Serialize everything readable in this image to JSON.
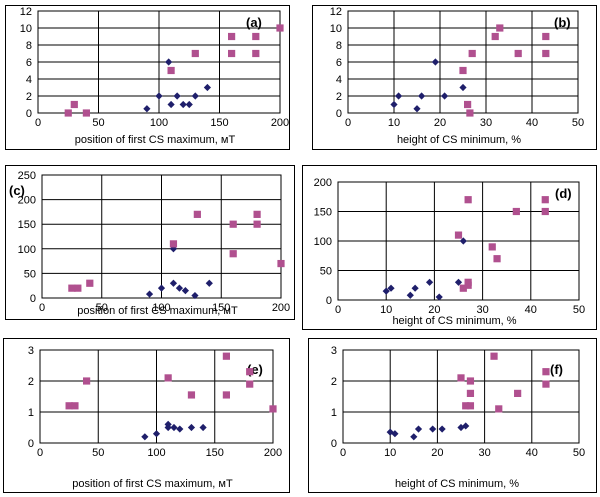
{
  "colors": {
    "diamond": "#1f1f6b",
    "square": "#b0508f",
    "grid": "#000000",
    "frame": "#000000"
  },
  "chart_data": [
    {
      "type": "scatter",
      "panel_label": "(a)",
      "xlabel": "position of first CS maximum, мT",
      "xlim": [
        0,
        200
      ],
      "ylim": [
        0,
        12
      ],
      "xticks": [
        0,
        50,
        100,
        150,
        200
      ],
      "yticks": [
        0,
        2,
        4,
        6,
        8,
        10,
        12
      ],
      "series": [
        {
          "marker": "diamond",
          "points": [
            [
              90,
              0.5
            ],
            [
              100,
              2
            ],
            [
              108,
              6
            ],
            [
              110,
              1
            ],
            [
              115,
              2
            ],
            [
              120,
              1
            ],
            [
              125,
              1
            ],
            [
              130,
              2
            ],
            [
              140,
              3
            ]
          ]
        },
        {
          "marker": "square",
          "points": [
            [
              25,
              0
            ],
            [
              30,
              1
            ],
            [
              40,
              0
            ],
            [
              110,
              5
            ],
            [
              130,
              7
            ],
            [
              160,
              9
            ],
            [
              160,
              7
            ],
            [
              180,
              9
            ],
            [
              180,
              7
            ],
            [
              200,
              10
            ]
          ]
        }
      ]
    },
    {
      "type": "scatter",
      "panel_label": "(b)",
      "xlabel": "height of CS minimum, %",
      "xlim": [
        0,
        50
      ],
      "ylim": [
        0,
        12
      ],
      "xticks": [
        0,
        10,
        20,
        30,
        40,
        50
      ],
      "yticks": [
        0,
        2,
        4,
        6,
        8,
        10,
        12
      ],
      "series": [
        {
          "marker": "diamond",
          "points": [
            [
              10,
              1
            ],
            [
              11,
              2
            ],
            [
              15,
              0.5
            ],
            [
              16,
              2
            ],
            [
              19,
              6
            ],
            [
              21,
              2
            ],
            [
              25,
              3
            ]
          ]
        },
        {
          "marker": "square",
          "points": [
            [
              25,
              5
            ],
            [
              26,
              1
            ],
            [
              26.5,
              0
            ],
            [
              27,
              7
            ],
            [
              32,
              9
            ],
            [
              33,
              10
            ],
            [
              37,
              7
            ],
            [
              43,
              9
            ],
            [
              43,
              7
            ]
          ]
        }
      ]
    },
    {
      "type": "scatter",
      "panel_label": "(c)",
      "xlabel": "position of first CS maximum, мT",
      "xlim": [
        0,
        200
      ],
      "ylim": [
        0,
        250
      ],
      "xticks": [
        0,
        50,
        100,
        150,
        200
      ],
      "yticks": [
        0,
        50,
        100,
        150,
        200,
        250
      ],
      "series": [
        {
          "marker": "diamond",
          "points": [
            [
              90,
              8
            ],
            [
              100,
              20
            ],
            [
              110,
              100
            ],
            [
              110,
              30
            ],
            [
              115,
              20
            ],
            [
              120,
              15
            ],
            [
              128,
              5
            ],
            [
              140,
              30
            ]
          ]
        },
        {
          "marker": "square",
          "points": [
            [
              25,
              20
            ],
            [
              30,
              20
            ],
            [
              40,
              30
            ],
            [
              110,
              110
            ],
            [
              130,
              170
            ],
            [
              160,
              150
            ],
            [
              160,
              90
            ],
            [
              180,
              170
            ],
            [
              180,
              150
            ],
            [
              200,
              70
            ]
          ]
        }
      ]
    },
    {
      "type": "scatter",
      "panel_label": "(d)",
      "xlabel": "height of CS minimum, %",
      "xlim": [
        0,
        50
      ],
      "ylim": [
        0,
        200
      ],
      "xticks": [
        0,
        10,
        20,
        30,
        40,
        50
      ],
      "yticks": [
        0,
        50,
        100,
        150,
        200
      ],
      "series": [
        {
          "marker": "diamond",
          "points": [
            [
              10,
              15
            ],
            [
              11,
              20
            ],
            [
              15,
              8
            ],
            [
              16,
              20
            ],
            [
              19,
              30
            ],
            [
              21,
              5
            ],
            [
              25,
              30
            ],
            [
              26,
              100
            ]
          ]
        },
        {
          "marker": "square",
          "points": [
            [
              25,
              110
            ],
            [
              26,
              20
            ],
            [
              27,
              170
            ],
            [
              27,
              30
            ],
            [
              27,
              25
            ],
            [
              32,
              90
            ],
            [
              33,
              70
            ],
            [
              37,
              150
            ],
            [
              43,
              170
            ],
            [
              43,
              150
            ]
          ]
        }
      ]
    },
    {
      "type": "scatter",
      "panel_label": "(e)",
      "xlabel": "position of first CS maximum, мT",
      "xlim": [
        0,
        200
      ],
      "ylim": [
        0,
        3
      ],
      "xticks": [
        0,
        50,
        100,
        150,
        200
      ],
      "yticks": [
        0,
        1,
        2,
        3
      ],
      "series": [
        {
          "marker": "diamond",
          "points": [
            [
              90,
              0.2
            ],
            [
              100,
              0.3
            ],
            [
              110,
              0.6
            ],
            [
              110,
              0.5
            ],
            [
              115,
              0.5
            ],
            [
              120,
              0.45
            ],
            [
              130,
              0.5
            ],
            [
              140,
              0.5
            ]
          ]
        },
        {
          "marker": "square",
          "points": [
            [
              25,
              1.2
            ],
            [
              30,
              1.2
            ],
            [
              40,
              2
            ],
            [
              110,
              2.1
            ],
            [
              130,
              1.55
            ],
            [
              160,
              2.8
            ],
            [
              160,
              1.55
            ],
            [
              180,
              2.3
            ],
            [
              180,
              1.9
            ],
            [
              200,
              1.1
            ]
          ]
        }
      ]
    },
    {
      "type": "scatter",
      "panel_label": "(f)",
      "xlabel": "height of CS minimum, %",
      "xlim": [
        0,
        50
      ],
      "ylim": [
        0,
        3
      ],
      "xticks": [
        0,
        10,
        20,
        30,
        40,
        50
      ],
      "yticks": [
        0,
        1,
        2,
        3
      ],
      "series": [
        {
          "marker": "diamond",
          "points": [
            [
              10,
              0.35
            ],
            [
              11,
              0.3
            ],
            [
              15,
              0.2
            ],
            [
              16,
              0.45
            ],
            [
              19,
              0.45
            ],
            [
              21,
              0.45
            ],
            [
              25,
              0.5
            ],
            [
              26,
              0.55
            ]
          ]
        },
        {
          "marker": "square",
          "points": [
            [
              25,
              2.1
            ],
            [
              26,
              1.2
            ],
            [
              27,
              2
            ],
            [
              27,
              1.6
            ],
            [
              27,
              1.2
            ],
            [
              32,
              2.8
            ],
            [
              33,
              1.1
            ],
            [
              37,
              1.6
            ],
            [
              43,
              2.3
            ],
            [
              43,
              1.9
            ]
          ]
        }
      ]
    }
  ]
}
